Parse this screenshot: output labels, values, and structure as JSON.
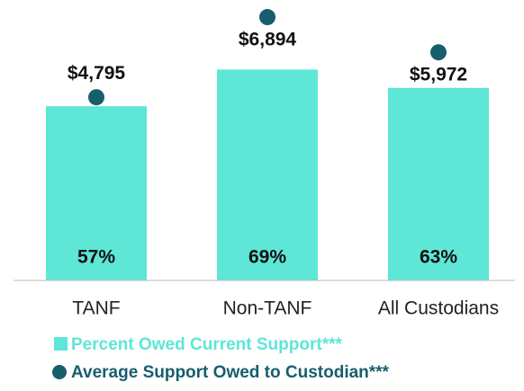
{
  "chart_data": {
    "type": "bar",
    "categories": [
      "TANF",
      "Non-TANF",
      "All Custodians"
    ],
    "series": [
      {
        "name": "Percent Owed Current Support***",
        "color": "#5ee6d6",
        "values": [
          57,
          69,
          63
        ],
        "value_labels": [
          "57%",
          "69%",
          "63%"
        ]
      },
      {
        "name": "Average Support Owed to Custodian***",
        "color": "#175e6c",
        "axis": "y2",
        "type": "scatter",
        "values": [
          4795,
          6894,
          5972
        ],
        "value_labels": [
          "$4,795",
          "$6,894",
          "$5,972"
        ]
      }
    ],
    "ylim": [
      0,
      90
    ],
    "y2lim": [
      0,
      7200
    ]
  }
}
